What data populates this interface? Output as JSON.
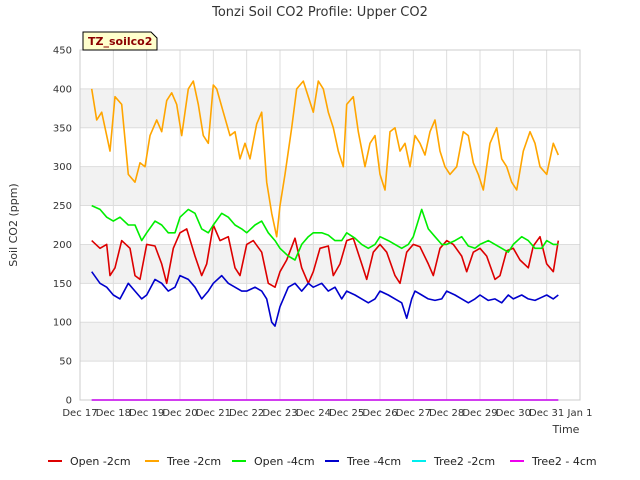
{
  "chart_data": {
    "type": "line",
    "title": "Tonzi Soil CO2 Profile: Upper CO2",
    "xlabel": "Time",
    "ylabel": "Soil CO2 (ppm)",
    "badge": "TZ_soilco2",
    "ylim": [
      0,
      450
    ],
    "yticks": [
      0,
      50,
      100,
      150,
      200,
      250,
      300,
      350,
      400,
      450
    ],
    "xlim": [
      17,
      32
    ],
    "xticks": [
      {
        "x": 17,
        "label": "Dec 17"
      },
      {
        "x": 18,
        "label": "Dec 18"
      },
      {
        "x": 19,
        "label": "Dec 19"
      },
      {
        "x": 20,
        "label": "Dec 20"
      },
      {
        "x": 21,
        "label": "Dec 21"
      },
      {
        "x": 22,
        "label": "Dec 22"
      },
      {
        "x": 23,
        "label": "Dec 23"
      },
      {
        "x": 24,
        "label": "Dec 24"
      },
      {
        "x": 25,
        "label": "Dec 25"
      },
      {
        "x": 26,
        "label": "Dec 26"
      },
      {
        "x": 27,
        "label": "Dec 27"
      },
      {
        "x": 28,
        "label": "Dec 28"
      },
      {
        "x": 29,
        "label": "Dec 29"
      },
      {
        "x": 30,
        "label": "Dec 30"
      },
      {
        "x": 31,
        "label": "Dec 31"
      },
      {
        "x": 32,
        "label": "Jan 1"
      }
    ],
    "grid": true,
    "legend_position": "bottom",
    "series": [
      {
        "name": "Open -2cm",
        "color": "#dd0000",
        "x": [
          17.35,
          17.6,
          17.8,
          17.9,
          18.05,
          18.25,
          18.5,
          18.65,
          18.8,
          19.0,
          19.25,
          19.45,
          19.6,
          19.8,
          20.0,
          20.2,
          20.45,
          20.65,
          20.8,
          21.0,
          21.2,
          21.45,
          21.65,
          21.8,
          22.0,
          22.2,
          22.45,
          22.65,
          22.85,
          23.0,
          23.2,
          23.45,
          23.65,
          23.85,
          24.0,
          24.2,
          24.45,
          24.6,
          24.8,
          25.0,
          25.2,
          25.45,
          25.6,
          25.8,
          26.0,
          26.2,
          26.45,
          26.6,
          26.8,
          27.0,
          27.2,
          27.45,
          27.6,
          27.8,
          28.0,
          28.2,
          28.45,
          28.6,
          28.8,
          29.0,
          29.2,
          29.45,
          29.6,
          29.8,
          30.0,
          30.2,
          30.45,
          30.6,
          30.8,
          31.0,
          31.2,
          31.35
        ],
        "y": [
          205,
          195,
          200,
          160,
          170,
          205,
          195,
          160,
          155,
          200,
          198,
          175,
          150,
          195,
          215,
          220,
          185,
          160,
          175,
          225,
          205,
          210,
          170,
          160,
          200,
          205,
          190,
          150,
          145,
          165,
          180,
          208,
          170,
          150,
          165,
          195,
          198,
          160,
          175,
          205,
          208,
          175,
          155,
          190,
          200,
          190,
          160,
          150,
          190,
          200,
          197,
          175,
          160,
          195,
          205,
          200,
          185,
          165,
          190,
          195,
          185,
          155,
          160,
          192,
          195,
          180,
          170,
          198,
          210,
          175,
          165,
          205
        ]
      },
      {
        "name": "Tree -2cm",
        "color": "#ffa500",
        "x": [
          17.35,
          17.5,
          17.65,
          17.8,
          17.9,
          18.05,
          18.25,
          18.45,
          18.65,
          18.8,
          18.95,
          19.1,
          19.3,
          19.45,
          19.6,
          19.75,
          19.9,
          20.05,
          20.25,
          20.4,
          20.55,
          20.7,
          20.85,
          21.0,
          21.1,
          21.3,
          21.5,
          21.65,
          21.8,
          21.95,
          22.1,
          22.3,
          22.45,
          22.6,
          22.75,
          22.9,
          23.0,
          23.15,
          23.35,
          23.5,
          23.7,
          23.85,
          24.0,
          24.15,
          24.3,
          24.45,
          24.6,
          24.75,
          24.9,
          25.0,
          25.2,
          25.35,
          25.55,
          25.7,
          25.85,
          26.0,
          26.15,
          26.3,
          26.45,
          26.6,
          26.75,
          26.9,
          27.05,
          27.2,
          27.35,
          27.5,
          27.65,
          27.8,
          27.95,
          28.1,
          28.3,
          28.5,
          28.65,
          28.8,
          28.95,
          29.1,
          29.3,
          29.5,
          29.65,
          29.8,
          29.95,
          30.1,
          30.3,
          30.5,
          30.65,
          30.8,
          31.0,
          31.2,
          31.35
        ],
        "y": [
          400,
          360,
          370,
          340,
          320,
          390,
          380,
          290,
          280,
          305,
          300,
          340,
          360,
          345,
          385,
          395,
          380,
          340,
          400,
          410,
          380,
          340,
          330,
          405,
          400,
          370,
          340,
          345,
          310,
          330,
          310,
          355,
          370,
          280,
          240,
          210,
          250,
          290,
          350,
          400,
          410,
          390,
          370,
          410,
          400,
          370,
          350,
          320,
          300,
          380,
          390,
          345,
          300,
          330,
          340,
          290,
          270,
          345,
          350,
          320,
          330,
          300,
          340,
          330,
          315,
          345,
          360,
          320,
          300,
          290,
          300,
          345,
          340,
          305,
          290,
          270,
          330,
          350,
          310,
          300,
          280,
          270,
          320,
          345,
          330,
          300,
          290,
          330,
          315
        ]
      },
      {
        "name": "Open -4cm",
        "color": "#00ee00",
        "x": [
          17.35,
          17.6,
          17.8,
          18.0,
          18.2,
          18.45,
          18.65,
          18.85,
          19.0,
          19.25,
          19.45,
          19.65,
          19.85,
          20.0,
          20.25,
          20.45,
          20.65,
          20.85,
          21.0,
          21.25,
          21.45,
          21.65,
          21.85,
          22.0,
          22.25,
          22.45,
          22.65,
          22.85,
          23.0,
          23.25,
          23.45,
          23.65,
          23.85,
          24.0,
          24.25,
          24.45,
          24.65,
          24.85,
          25.0,
          25.25,
          25.45,
          25.65,
          25.85,
          26.0,
          26.25,
          26.45,
          26.65,
          26.85,
          27.0,
          27.25,
          27.45,
          27.65,
          27.85,
          28.0,
          28.25,
          28.45,
          28.65,
          28.85,
          29.0,
          29.25,
          29.45,
          29.65,
          29.85,
          30.0,
          30.25,
          30.45,
          30.65,
          30.85,
          31.0,
          31.2,
          31.35
        ],
        "y": [
          250,
          245,
          235,
          230,
          235,
          225,
          225,
          205,
          215,
          230,
          225,
          215,
          215,
          235,
          245,
          240,
          220,
          215,
          225,
          240,
          235,
          225,
          220,
          215,
          225,
          230,
          215,
          205,
          195,
          185,
          180,
          200,
          210,
          215,
          215,
          212,
          205,
          205,
          215,
          208,
          200,
          195,
          200,
          210,
          205,
          200,
          195,
          200,
          210,
          245,
          220,
          210,
          200,
          200,
          205,
          210,
          198,
          195,
          200,
          205,
          200,
          195,
          190,
          200,
          210,
          205,
          195,
          195,
          205,
          200,
          200
        ]
      },
      {
        "name": "Tree -4cm",
        "color": "#0000cc",
        "x": [
          17.35,
          17.6,
          17.8,
          18.0,
          18.2,
          18.45,
          18.65,
          18.85,
          19.0,
          19.25,
          19.45,
          19.65,
          19.85,
          20.0,
          20.25,
          20.45,
          20.65,
          20.85,
          21.0,
          21.25,
          21.45,
          21.65,
          21.85,
          22.0,
          22.25,
          22.45,
          22.6,
          22.75,
          22.85,
          23.0,
          23.25,
          23.45,
          23.65,
          23.85,
          24.0,
          24.25,
          24.45,
          24.65,
          24.85,
          25.0,
          25.25,
          25.45,
          25.65,
          25.85,
          26.0,
          26.25,
          26.45,
          26.65,
          26.8,
          26.95,
          27.05,
          27.25,
          27.45,
          27.65,
          27.85,
          28.0,
          28.25,
          28.45,
          28.65,
          28.85,
          29.0,
          29.25,
          29.45,
          29.65,
          29.85,
          30.0,
          30.25,
          30.45,
          30.65,
          30.85,
          31.0,
          31.2,
          31.35
        ],
        "y": [
          165,
          150,
          145,
          135,
          130,
          150,
          140,
          130,
          135,
          155,
          150,
          140,
          145,
          160,
          155,
          145,
          130,
          140,
          150,
          160,
          150,
          145,
          140,
          140,
          145,
          140,
          130,
          100,
          95,
          120,
          145,
          150,
          140,
          150,
          145,
          150,
          140,
          145,
          130,
          140,
          135,
          130,
          125,
          130,
          140,
          135,
          130,
          125,
          105,
          130,
          140,
          135,
          130,
          128,
          130,
          140,
          135,
          130,
          125,
          130,
          135,
          128,
          130,
          125,
          135,
          130,
          135,
          130,
          128,
          132,
          135,
          130,
          135
        ]
      },
      {
        "name": "Tree2 -2cm",
        "color": "#00eeee",
        "x": [
          17.35,
          31.35
        ],
        "y": [
          0,
          0
        ]
      },
      {
        "name": "Tree2 - 4cm",
        "color": "#ee00ee",
        "x": [
          17.35,
          31.35
        ],
        "y": [
          0,
          0
        ]
      }
    ]
  }
}
